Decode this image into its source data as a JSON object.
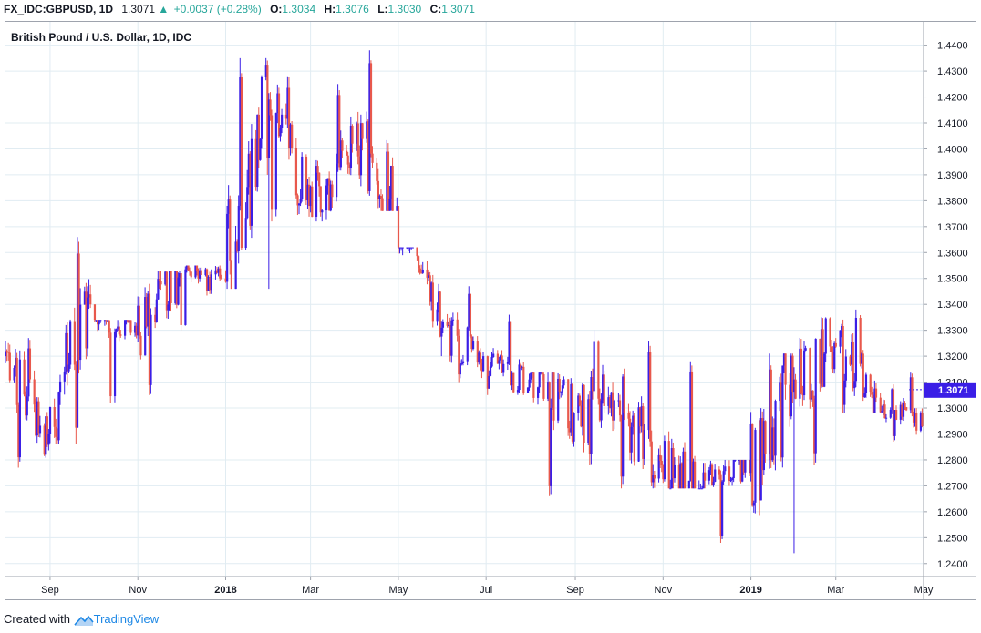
{
  "header": {
    "symbol": "FX_IDC:GBPUSD, 1D",
    "last": "1.3071",
    "arrow": "▲",
    "change": "+0.0037 (+0.28%)",
    "open_label": "O:",
    "open": "1.3034",
    "high_label": "H:",
    "high": "1.3076",
    "low_label": "L:",
    "low": "1.3030",
    "close_label": "C:",
    "close": "1.3071"
  },
  "footer": {
    "created_with": "Created with",
    "brand": "TradingView"
  },
  "colors": {
    "up": "#3a1ee6",
    "down": "#e8584c",
    "grid": "#e1ecf2",
    "axis_text": "#131722",
    "price_tag": "#3a1ee6",
    "header_up": "#26a69a"
  },
  "chart_data": {
    "type": "candlestick",
    "title": "British Pound / U.S. Dollar, 1D, IDC",
    "ylim": [
      1.235,
      1.449
    ],
    "y_ticks": [
      "1.2400",
      "1.2500",
      "1.2600",
      "1.2700",
      "1.2800",
      "1.2900",
      "1.3000",
      "1.3100",
      "1.3200",
      "1.3300",
      "1.3400",
      "1.3500",
      "1.3600",
      "1.3700",
      "1.3800",
      "1.3900",
      "1.4000",
      "1.4100",
      "1.4200",
      "1.4300",
      "1.4400"
    ],
    "x_ticks": [
      "Sep",
      "Nov",
      "2018",
      "Mar",
      "May",
      "Jul",
      "Sep",
      "Nov",
      "2019",
      "Mar",
      "May"
    ],
    "bold_x_ticks": [
      "2018",
      "2019"
    ],
    "last_price": "1.3071",
    "grid": true,
    "date_range": [
      "2017-08-01",
      "2019-05-01"
    ],
    "monthly_ohlc": [
      {
        "month": "2017-08",
        "open": 1.32,
        "high": 1.327,
        "low": 1.277,
        "close": 1.29
      },
      {
        "month": "2017-09",
        "open": 1.29,
        "high": 1.366,
        "low": 1.286,
        "close": 1.34
      },
      {
        "month": "2017-10",
        "open": 1.34,
        "high": 1.334,
        "low": 1.302,
        "close": 1.328
      },
      {
        "month": "2017-11",
        "open": 1.328,
        "high": 1.353,
        "low": 1.305,
        "close": 1.352
      },
      {
        "month": "2017-12",
        "open": 1.352,
        "high": 1.355,
        "low": 1.33,
        "close": 1.35
      },
      {
        "month": "2018-01",
        "open": 1.35,
        "high": 1.435,
        "low": 1.346,
        "close": 1.419
      },
      {
        "month": "2018-02",
        "open": 1.419,
        "high": 1.428,
        "low": 1.372,
        "close": 1.378
      },
      {
        "month": "2018-03",
        "open": 1.378,
        "high": 1.425,
        "low": 1.372,
        "close": 1.402
      },
      {
        "month": "2018-04",
        "open": 1.402,
        "high": 1.438,
        "low": 1.376,
        "close": 1.378
      },
      {
        "month": "2018-05",
        "open": 1.378,
        "high": 1.362,
        "low": 1.32,
        "close": 1.331
      },
      {
        "month": "2018-06",
        "open": 1.331,
        "high": 1.347,
        "low": 1.31,
        "close": 1.32
      },
      {
        "month": "2018-07",
        "open": 1.32,
        "high": 1.336,
        "low": 1.305,
        "close": 1.311
      },
      {
        "month": "2018-08",
        "open": 1.311,
        "high": 1.314,
        "low": 1.266,
        "close": 1.298
      },
      {
        "month": "2018-09",
        "open": 1.298,
        "high": 1.33,
        "low": 1.278,
        "close": 1.303
      },
      {
        "month": "2018-10",
        "open": 1.303,
        "high": 1.326,
        "low": 1.269,
        "close": 1.278
      },
      {
        "month": "2018-11",
        "open": 1.278,
        "high": 1.318,
        "low": 1.269,
        "close": 1.272
      },
      {
        "month": "2018-12",
        "open": 1.272,
        "high": 1.28,
        "low": 1.248,
        "close": 1.275
      },
      {
        "month": "2019-01",
        "open": 1.275,
        "high": 1.321,
        "low": 1.244,
        "close": 1.311
      },
      {
        "month": "2019-02",
        "open": 1.311,
        "high": 1.335,
        "low": 1.278,
        "close": 1.325
      },
      {
        "month": "2019-03",
        "open": 1.325,
        "high": 1.338,
        "low": 1.298,
        "close": 1.304
      },
      {
        "month": "2019-04",
        "open": 1.304,
        "high": 1.314,
        "low": 1.287,
        "close": 1.293
      },
      {
        "month": "2019-05",
        "open": 1.293,
        "high": 1.3076,
        "low": 1.287,
        "close": 1.3071
      }
    ]
  }
}
